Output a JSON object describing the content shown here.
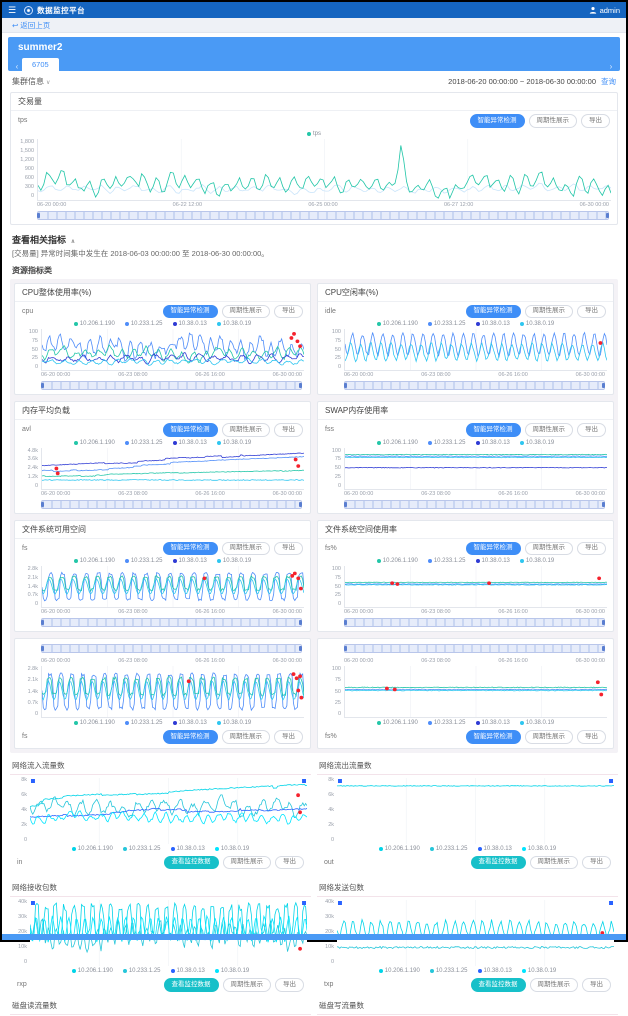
{
  "header": {
    "logo": "数据监控平台",
    "user": "admin"
  },
  "breadcrumb": {
    "back": "返回上页",
    "back_icon": "↩"
  },
  "cluster": {
    "name": "summer2",
    "tab": "6705",
    "arrow_left": "‹",
    "arrow_right": "›"
  },
  "infobar": {
    "label": "集群信息",
    "caret": "∨",
    "date_range": "2018-06-20 00:00:00 ~ 2018-06-30 00:00:00",
    "query": "查询"
  },
  "buttons": {
    "primary": "智能异常检测",
    "secondary": "周期性展示",
    "export": "导出",
    "view": "查看监控数据"
  },
  "related": {
    "title": "查看相关指标",
    "caret": "∧",
    "desc": "[交易量] 异常时间集中发生在 2018-06-03 00:00:00 至 2018-06-30 00:00:00。",
    "subsection": "资源指标类"
  },
  "hosts": [
    "10.206.1.190",
    "10.233.1.25",
    "10.38.0.13",
    "10.38.0.19"
  ],
  "legend_colors": [
    "#23c6a8",
    "#4f8df9",
    "#2f3bd4",
    "#2fc6f0"
  ],
  "net_legend_colors": [
    "#00d4e8",
    "#26c6da",
    "#2962ff",
    "#00e5ff"
  ],
  "xticks_small": [
    "06-20 00:00",
    "06-23 08:00",
    "06-26 16:00",
    "06-30 00:00"
  ],
  "tx_chart": {
    "title": "交易量",
    "label": "tps",
    "legend": [
      {
        "label": "tps",
        "color": "#23c6a8"
      }
    ],
    "yticks": [
      "1,800",
      "1,500",
      "1,200",
      "900",
      "600",
      "300",
      "0"
    ],
    "xticks": [
      "06-20 00:00",
      "06-22 12:00",
      "06-25 00:00",
      "06-27 12:00",
      "06-30 00:00"
    ],
    "lines": [
      {
        "c": "#c9e4fa",
        "t": "noise",
        "b": 0.82,
        "a": 0.1,
        "f": 34,
        "s": 2
      },
      {
        "c": "#23c6a8",
        "t": "noise",
        "b": 0.72,
        "a": 0.26,
        "f": 42,
        "s": 1,
        "n": 0.05,
        "spike": [
          0.633,
          -0.62
        ]
      }
    ],
    "dots": []
  },
  "resource_charts": [
    {
      "title": "CPU整体使用率(%)",
      "label": "cpu",
      "variant": "normal",
      "yticks": [
        "100",
        "75",
        "50",
        "25",
        "0"
      ],
      "lines": [
        {
          "c": "#4f8df9",
          "t": "noise",
          "b": 0.42,
          "a": 0.42,
          "f": 26,
          "s": 11
        },
        {
          "c": "#23c6a8",
          "t": "noise",
          "b": 0.6,
          "a": 0.22,
          "f": 22,
          "s": 12
        },
        {
          "c": "#2f3bd4",
          "t": "noise",
          "b": 0.72,
          "a": 0.16,
          "f": 18,
          "s": 13
        },
        {
          "c": "#2fc6f0",
          "t": "noise",
          "b": 0.8,
          "a": 0.1,
          "f": 20,
          "s": 14
        }
      ],
      "dots": [
        [
          0.962,
          0.12
        ],
        [
          0.975,
          0.3
        ],
        [
          0.952,
          0.22
        ],
        [
          0.985,
          0.42
        ]
      ]
    },
    {
      "title": "CPU空闲率(%)",
      "label": "idle",
      "variant": "normal",
      "yticks": [
        "100",
        "75",
        "50",
        "25",
        "0"
      ],
      "lines": [
        {
          "c": "#4f8df9",
          "t": "sine",
          "b": 0.38,
          "a": 0.26,
          "f": 26,
          "s": 21,
          "n": 0.08
        },
        {
          "c": "#2fc6f0",
          "t": "sine",
          "b": 0.56,
          "a": 0.2,
          "f": 26,
          "s": 22,
          "p": 1.2,
          "n": 0.08
        }
      ],
      "dots": [
        [
          0.975,
          0.34
        ]
      ]
    },
    {
      "title": "内存平均负载",
      "label": "avl",
      "variant": "normal",
      "yticks": [
        "4.8k",
        "3.6k",
        "2.4k",
        "1.2k",
        "0"
      ],
      "lines": [
        {
          "c": "#2f3bd4",
          "t": "drift",
          "b": 0.28,
          "a": 0.3,
          "f": 7,
          "s": 31
        },
        {
          "c": "#4f8df9",
          "t": "drift",
          "b": 0.42,
          "a": 0.26,
          "f": 9,
          "s": 32
        },
        {
          "c": "#23c6a8",
          "t": "drift",
          "b": 0.62,
          "a": 0.12,
          "f": 5,
          "s": 33
        },
        {
          "c": "#2fc6f0",
          "t": "flat",
          "b": 0.78,
          "s": 34,
          "n": 0.02
        }
      ],
      "dots": [
        [
          0.055,
          0.5
        ],
        [
          0.06,
          0.62
        ],
        [
          0.968,
          0.28
        ],
        [
          0.978,
          0.44
        ]
      ]
    },
    {
      "title": "SWAP内存使用率",
      "label": "fss",
      "variant": "normal",
      "yticks": [
        "100",
        "75",
        "50",
        "25",
        "0"
      ],
      "lines": [
        {
          "c": "#23c6a8",
          "t": "flat",
          "b": 0.16,
          "s": 41
        },
        {
          "c": "#4f8df9",
          "t": "flat",
          "b": 0.2,
          "s": 42
        },
        {
          "c": "#2f3bd4",
          "t": "flat",
          "b": 0.48,
          "s": 43
        },
        {
          "c": "#2fc6f0",
          "t": "flat",
          "b": 0.23,
          "s": 44
        }
      ],
      "dots": []
    },
    {
      "title": "文件系统可用空间",
      "label": "fs",
      "variant": "normal",
      "yticks": [
        "2.8k",
        "2.1k",
        "1.4k",
        "0.7k",
        "0"
      ],
      "lines": [
        {
          "c": "#4f8df9",
          "t": "square",
          "b": 0.5,
          "a": 0.32,
          "f": 22,
          "s": 51,
          "n": 0.06
        },
        {
          "c": "#23c6a8",
          "t": "square",
          "b": 0.42,
          "a": 0.16,
          "f": 22,
          "s": 52,
          "p": 0.5,
          "n": 0.06
        },
        {
          "c": "#2fc6f0",
          "t": "sine",
          "b": 0.5,
          "a": 0.18,
          "f": 22,
          "s": 53,
          "p": 1
        }
      ],
      "dots": [
        [
          0.62,
          0.3
        ],
        [
          0.965,
          0.18
        ],
        [
          0.978,
          0.3
        ],
        [
          0.955,
          0.24
        ],
        [
          0.988,
          0.55
        ]
      ]
    },
    {
      "title": "文件系统空间使用率",
      "label": "fs%",
      "variant": "normal",
      "yticks": [
        "100",
        "75",
        "50",
        "25",
        "0"
      ],
      "lines": [
        {
          "c": "#23c6a8",
          "t": "flat",
          "b": 0.4,
          "s": 61
        },
        {
          "c": "#4f8df9",
          "t": "flat",
          "b": 0.44,
          "s": 62
        },
        {
          "c": "#2fc6f0",
          "t": "flat",
          "b": 0.46,
          "s": 63
        }
      ],
      "dots": [
        [
          0.18,
          0.42
        ],
        [
          0.2,
          0.44
        ],
        [
          0.55,
          0.42
        ],
        [
          0.97,
          0.3
        ]
      ]
    },
    {
      "title": "",
      "label": "fs",
      "variant": "mirror",
      "yticks": [
        "2.8k",
        "2.1k",
        "1.4k",
        "0.7k",
        "0"
      ],
      "lines": [
        {
          "c": "#4f8df9",
          "t": "square",
          "b": 0.5,
          "a": 0.34,
          "f": 24,
          "s": 55,
          "n": 0.06
        },
        {
          "c": "#23c6a8",
          "t": "square",
          "b": 0.4,
          "a": 0.16,
          "f": 24,
          "s": 56,
          "p": 0.6,
          "n": 0.06
        },
        {
          "c": "#2fc6f0",
          "t": "sine",
          "b": 0.48,
          "a": 0.18,
          "f": 24,
          "s": 57,
          "p": 1
        }
      ],
      "dots": [
        [
          0.56,
          0.3
        ],
        [
          0.96,
          0.16
        ],
        [
          0.972,
          0.24
        ],
        [
          0.985,
          0.2
        ],
        [
          0.978,
          0.48
        ],
        [
          0.99,
          0.62
        ]
      ]
    },
    {
      "title": "",
      "label": "fs%",
      "variant": "mirror",
      "yticks": [
        "100",
        "75",
        "50",
        "25",
        "0"
      ],
      "lines": [
        {
          "c": "#23c6a8",
          "t": "flat",
          "b": 0.42,
          "s": 65
        },
        {
          "c": "#4f8df9",
          "t": "flat",
          "b": 0.46,
          "s": 66
        },
        {
          "c": "#2fc6f0",
          "t": "flat",
          "b": 0.48,
          "s": 67
        }
      ],
      "dots": [
        [
          0.16,
          0.44
        ],
        [
          0.19,
          0.46
        ],
        [
          0.965,
          0.32
        ],
        [
          0.978,
          0.56
        ]
      ]
    }
  ],
  "network_charts": [
    {
      "title": "网络流入流量数",
      "label": "in",
      "yticks": [
        "8k",
        "6k",
        "4k",
        "2k",
        "0"
      ],
      "lines": [
        {
          "c": "#00d4e8",
          "t": "drift",
          "b": 0.32,
          "a": 0.22,
          "f": 8,
          "s": 71
        },
        {
          "c": "#26c6da",
          "t": "noise",
          "b": 0.44,
          "a": 0.2,
          "f": 20,
          "s": 72
        },
        {
          "c": "#2962ff",
          "t": "drift",
          "b": 0.5,
          "a": 0.18,
          "f": 6,
          "s": 73
        },
        {
          "c": "#00e5ff",
          "t": "noise",
          "b": 0.6,
          "a": 0.12,
          "f": 26,
          "s": 74
        }
      ],
      "dots": [
        [
          0.968,
          0.26
        ],
        [
          0.975,
          0.52
        ]
      ]
    },
    {
      "title": "网络流出流量数",
      "label": "out",
      "yticks": [
        "8k",
        "6k",
        "4k",
        "2k",
        "0"
      ],
      "lines": [
        {
          "c": "#00d4e8",
          "t": "flat",
          "b": 0.12,
          "s": 81,
          "n": 0.01
        }
      ],
      "dots": []
    },
    {
      "title": "网络接收包数",
      "label": "rxp",
      "yticks": [
        "40k",
        "30k",
        "20k",
        "10k",
        "0"
      ],
      "lines": [
        {
          "c": "#00d4e8",
          "t": "square",
          "b": 0.32,
          "a": 0.22,
          "f": 30,
          "s": 91,
          "n": 0.12
        },
        {
          "c": "#26c6da",
          "t": "noise",
          "b": 0.52,
          "a": 0.3,
          "f": 40,
          "s": 92
        },
        {
          "c": "#00e5ff",
          "t": "sine",
          "b": 0.44,
          "a": 0.18,
          "f": 34,
          "s": 93,
          "n": 0.06
        }
      ],
      "dots": [
        [
          0.982,
          0.58
        ],
        [
          0.975,
          0.74
        ]
      ]
    },
    {
      "title": "网络发送包数",
      "label": "txp",
      "yticks": [
        "40k",
        "30k",
        "20k",
        "10k",
        "0"
      ],
      "lines": [
        {
          "c": "#00d4e8",
          "t": "sine",
          "b": 0.45,
          "a": 0.12,
          "f": 30,
          "s": 101,
          "n": 0.08
        },
        {
          "c": "#26c6da",
          "t": "flat",
          "b": 0.72,
          "s": 102,
          "n": 0.03
        }
      ],
      "dots": [
        [
          0.958,
          0.5
        ]
      ]
    }
  ],
  "network_cut_titles": [
    "磁盘读流量数",
    "磁盘写流量数"
  ]
}
